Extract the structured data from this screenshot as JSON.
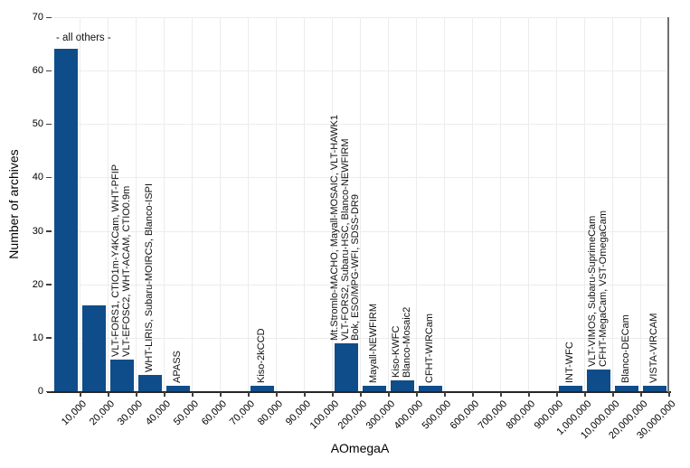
{
  "chart_data": {
    "type": "bar",
    "title": "",
    "xlabel": "AOmegaA",
    "ylabel": "Number of archives",
    "ylim": [
      0,
      70
    ],
    "yticks": [
      0,
      10,
      20,
      30,
      40,
      50,
      60,
      70
    ],
    "grid": true,
    "legend": null,
    "bar_color": "#0f4d8a",
    "grid_color": "#ececec",
    "categories": [
      "10,000",
      "20,000",
      "30,000",
      "40,000",
      "50,000",
      "60,000",
      "70,000",
      "80,000",
      "90,000",
      "100,000",
      "200,000",
      "300,000",
      "400,000",
      "500,000",
      "600,000",
      "700,000",
      "800,000",
      "900,000",
      "1,000,000",
      "10,000,000",
      "20,000,000",
      "30,000,000"
    ],
    "values": [
      64,
      16,
      6,
      3,
      1,
      0,
      0,
      1,
      0,
      0,
      9,
      1,
      2,
      1,
      0,
      0,
      0,
      0,
      1,
      4,
      1,
      1
    ],
    "annotation": "- all others -",
    "bar_labels": [
      {
        "index": 2,
        "lines": [
          "VLT-FORS1, CTIO1m-Y4KCam, WHT-PFIP",
          "VLT-EFOSC2, WHT-ACAM, CTIO0.9m"
        ]
      },
      {
        "index": 3,
        "lines": [
          "WHT-LIRIS, Subaru-MOIRCS, Blanco-ISPI"
        ]
      },
      {
        "index": 4,
        "lines": [
          "APASS"
        ]
      },
      {
        "index": 7,
        "lines": [
          "Kiso-2kCCD"
        ]
      },
      {
        "index": 10,
        "lines": [
          "Mt.Stromlo-MACHO, Mayall-MOSAIC, VLT-HAWK1",
          "VLT-FORS2, Subaru-HSC, Blanco-NEWFIRM",
          "Bok, ESO/MPG-WFI, SDSS-DR9"
        ]
      },
      {
        "index": 11,
        "lines": [
          "Mayall-NEWFIRM"
        ]
      },
      {
        "index": 12,
        "lines": [
          "Kiso-KWFC",
          "Blanco-Mosaic2"
        ]
      },
      {
        "index": 13,
        "lines": [
          "CFHT-WIRCam"
        ]
      },
      {
        "index": 18,
        "lines": [
          "INT-WFC"
        ]
      },
      {
        "index": 19,
        "lines": [
          "VLT-VIMOS, Subaru-SuprimeCam",
          "CFHT-MegaCam, VST-OmegaCam"
        ]
      },
      {
        "index": 20,
        "lines": [
          "Blanco-DECam"
        ]
      },
      {
        "index": 21,
        "lines": [
          "VISTA-VIRCAM"
        ]
      }
    ]
  }
}
